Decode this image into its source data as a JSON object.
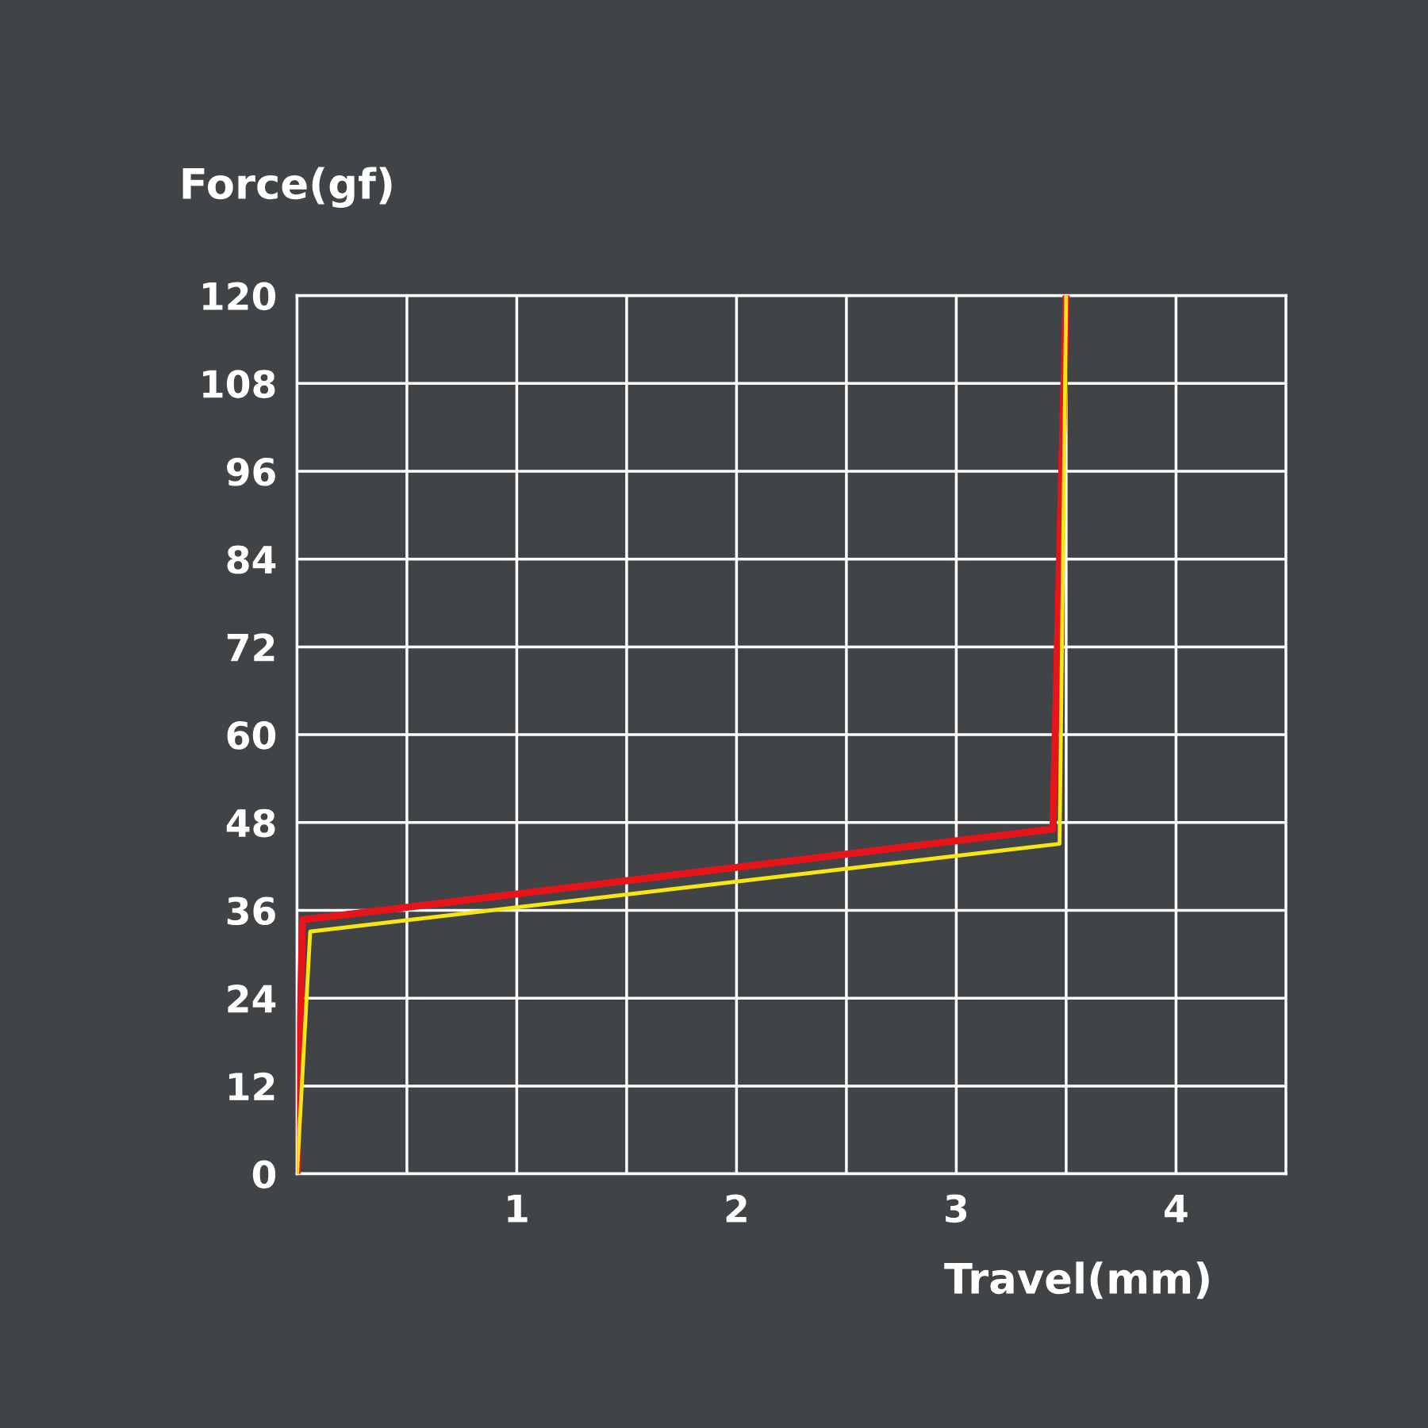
{
  "chart_data": {
    "type": "line",
    "xlabel": "Travel(mm)",
    "ylabel": "Force(gf)",
    "series": [
      {
        "color": "#e8141c",
        "x": [
          0,
          0.025,
          3.44,
          3.5
        ],
        "values": [
          0,
          34.7,
          47.1,
          120
        ]
      },
      {
        "color": "#f5e614",
        "x": [
          0,
          0.06,
          3.47,
          3.5
        ],
        "values": [
          0,
          33.1,
          45.1,
          120
        ]
      }
    ],
    "xlim": [
      0,
      4.5
    ],
    "ylim": [
      0,
      120
    ],
    "xticks": [
      {
        "value": 0.5,
        "label": null
      },
      1,
      {
        "value": 1.5,
        "label": null
      },
      2,
      {
        "value": 2.5,
        "label": null
      },
      3,
      {
        "value": 3.5,
        "label": null
      },
      4
    ],
    "yticks": [
      0,
      12,
      24,
      36,
      48,
      60,
      72,
      84,
      96,
      108,
      120
    ],
    "grid": true,
    "marker": "none",
    "line_style": "solid",
    "legend": false
  }
}
